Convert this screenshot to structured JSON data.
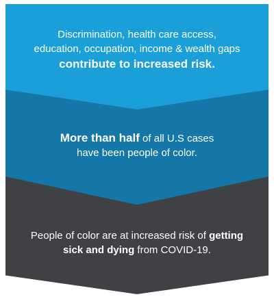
{
  "steps": [
    {
      "line1": "Discrimination, health care access,",
      "line2": "education, occupation, income & wealth gaps",
      "line3": "contribute to increased risk.",
      "color": "#1a9fd8"
    },
    {
      "bold": "More than half",
      "line1_rest": " of all U.S cases",
      "line2": "have been people of color.",
      "color": "#1577a8"
    },
    {
      "line1_pre": "People of color are at increased risk of ",
      "line1_bold": "getting",
      "line2_bold": "sick and dying",
      "line2_rest": " from COVID-19.",
      "color": "#3f4145"
    }
  ]
}
